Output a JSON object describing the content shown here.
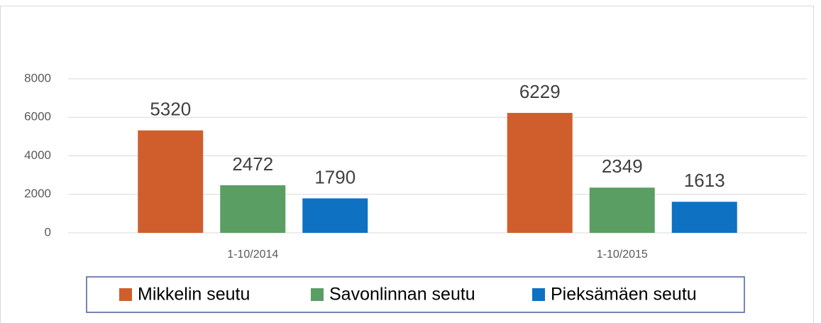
{
  "chart_data": {
    "type": "bar",
    "categories": [
      "1-10/2014",
      "1-10/2015"
    ],
    "series": [
      {
        "name": "Mikkelin seutu",
        "color": "#d05e2d",
        "values": [
          5320,
          6229
        ]
      },
      {
        "name": "Savonlinnan seutu",
        "color": "#5a9e63",
        "values": [
          2472,
          2349
        ]
      },
      {
        "name": "Pieksämäen seutu",
        "color": "#0f71c2",
        "values": [
          1790,
          1613
        ]
      }
    ],
    "ylim": [
      0,
      8000
    ],
    "yticks": [
      0,
      2000,
      4000,
      6000,
      8000
    ],
    "grid": true,
    "legend": "bottom"
  }
}
